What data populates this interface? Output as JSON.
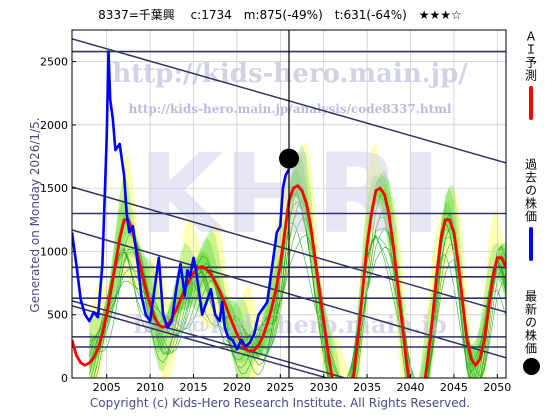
{
  "header": {
    "title": "8337=千葉興　 c:1734　m:875(-49%)　t:631(-64%)　★★★☆"
  },
  "watermarks": {
    "url1": "http://kids-hero.main.jp/",
    "url2": "http://kids-hero.main.jp/analysis/code8337.html",
    "big": "KHRI",
    "mail": "info@kids-hero.main.jp"
  },
  "generated": "Generated on Monday 2026/1/5.",
  "copyright": "Copyright (c) Kids-Hero Research Institute. All Rights Reserved.",
  "legend": {
    "ai": {
      "label": "ＡＩ予測",
      "color": "#ff0000"
    },
    "past": {
      "label": "過去の株価",
      "color": "#0000ff"
    },
    "latest": {
      "label": "最新の株価",
      "color": "#000000"
    }
  },
  "colors": {
    "price": "#0000ff",
    "prediction": "#ff0000",
    "band_green": "#66dd44",
    "band_yellow": "#ffffaa",
    "band_line": "#22aa22",
    "trend": "#333366",
    "grid": "#c8c8c8"
  },
  "chart_data": {
    "type": "line",
    "xlim": [
      2001,
      2051
    ],
    "ylim": [
      0,
      2750
    ],
    "x_ticks": [
      2005,
      2010,
      2015,
      2020,
      2025,
      2030,
      2035,
      2040,
      2045,
      2050
    ],
    "y_ticks": [
      0,
      500,
      1000,
      1500,
      2000,
      2500
    ],
    "latest_point": {
      "x": 2026.0,
      "y": 1734
    },
    "current_marker_x": 2026.0,
    "horizontal_levels": [
      2580,
      1300,
      875,
      800,
      631,
      325,
      245
    ],
    "trend_lines": [
      {
        "x": [
          2001,
          2051
        ],
        "y": [
          2680,
          1700
        ]
      },
      {
        "x": [
          2001,
          2051
        ],
        "y": [
          1510,
          520
        ]
      },
      {
        "x": [
          2001,
          2051
        ],
        "y": [
          1170,
          160
        ]
      },
      {
        "x": [
          2001,
          2051
        ],
        "y": [
          610,
          -360
        ]
      },
      {
        "x": [
          2001,
          2051
        ],
        "y": [
          570,
          -400
        ]
      }
    ],
    "series": [
      {
        "name": "過去の株価",
        "x": [
          2001,
          2001.5,
          2002,
          2002.5,
          2003,
          2003.5,
          2004,
          2004.5,
          2004.8,
          2005,
          2005.2,
          2005.4,
          2005.7,
          2006,
          2006.5,
          2007,
          2007.3,
          2007.6,
          2008,
          2008.5,
          2009,
          2009.5,
          2010,
          2010.5,
          2011,
          2011.5,
          2012,
          2012.5,
          2013,
          2013.5,
          2014,
          2014.3,
          2014.6,
          2015,
          2015.3,
          2015.6,
          2016,
          2016.5,
          2017,
          2017.5,
          2018,
          2018.3,
          2018.6,
          2019,
          2019.5,
          2020,
          2020.5,
          2021,
          2021.5,
          2022,
          2022.5,
          2023,
          2023.5,
          2024,
          2024.3,
          2024.6,
          2025,
          2025.3,
          2025.6,
          2026
        ],
        "y": [
          1150,
          900,
          620,
          500,
          450,
          520,
          480,
          900,
          1500,
          1900,
          2580,
          2200,
          2050,
          1800,
          1850,
          1600,
          1300,
          1150,
          1200,
          950,
          650,
          500,
          450,
          700,
          950,
          500,
          400,
          450,
          700,
          900,
          650,
          850,
          800,
          950,
          850,
          700,
          500,
          600,
          700,
          500,
          450,
          600,
          400,
          320,
          300,
          230,
          300,
          250,
          280,
          350,
          500,
          550,
          600,
          850,
          1000,
          1150,
          1200,
          1500,
          1600,
          1650
        ]
      },
      {
        "name": "ＡＩ予測",
        "x": [
          2001,
          2001.5,
          2002,
          2002.5,
          2003,
          2003.5,
          2004,
          2004.5,
          2005,
          2005.5,
          2006,
          2006.5,
          2007,
          2007.5,
          2008,
          2008.5,
          2009,
          2009.5,
          2010,
          2010.5,
          2011,
          2011.5,
          2012,
          2012.5,
          2013,
          2013.5,
          2014,
          2014.5,
          2015,
          2015.5,
          2016,
          2016.5,
          2017,
          2017.5,
          2018,
          2018.5,
          2019,
          2019.5,
          2020,
          2020.5,
          2021,
          2021.5,
          2022,
          2022.5,
          2023,
          2023.5,
          2024,
          2024.5,
          2025,
          2025.5,
          2026,
          2026.5,
          2027,
          2027.5,
          2028,
          2028.5,
          2029,
          2029.5,
          2030,
          2030.5,
          2031,
          2031.5,
          2032,
          2032.5,
          2033,
          2033.5,
          2034,
          2034.5,
          2035,
          2035.5,
          2036,
          2036.5,
          2037,
          2037.5,
          2038,
          2038.5,
          2039,
          2039.5,
          2040,
          2040.5,
          2041,
          2041.5,
          2042,
          2042.5,
          2043,
          2043.5,
          2044,
          2044.5,
          2045,
          2045.5,
          2046,
          2046.5,
          2047,
          2047.5,
          2048,
          2048.5,
          2049,
          2049.5,
          2050,
          2050.5,
          2051
        ],
        "y": [
          300,
          180,
          120,
          100,
          120,
          160,
          230,
          350,
          500,
          700,
          900,
          1100,
          1250,
          1250,
          1150,
          1000,
          850,
          700,
          580,
          480,
          420,
          400,
          420,
          470,
          540,
          620,
          700,
          770,
          830,
          870,
          880,
          860,
          820,
          760,
          690,
          610,
          520,
          430,
          350,
          280,
          230,
          210,
          220,
          260,
          330,
          430,
          550,
          700,
          900,
          1150,
          1400,
          1500,
          1520,
          1480,
          1380,
          1200,
          950,
          700,
          450,
          200,
          -10,
          -150,
          -250,
          -250,
          -150,
          50,
          350,
          700,
          1050,
          1300,
          1480,
          1500,
          1450,
          1300,
          1050,
          750,
          450,
          150,
          -100,
          -250,
          -250,
          -100,
          150,
          450,
          800,
          1100,
          1250,
          1250,
          1150,
          900,
          600,
          300,
          150,
          100,
          150,
          300,
          550,
          800,
          950,
          950,
          870
        ]
      }
    ]
  }
}
